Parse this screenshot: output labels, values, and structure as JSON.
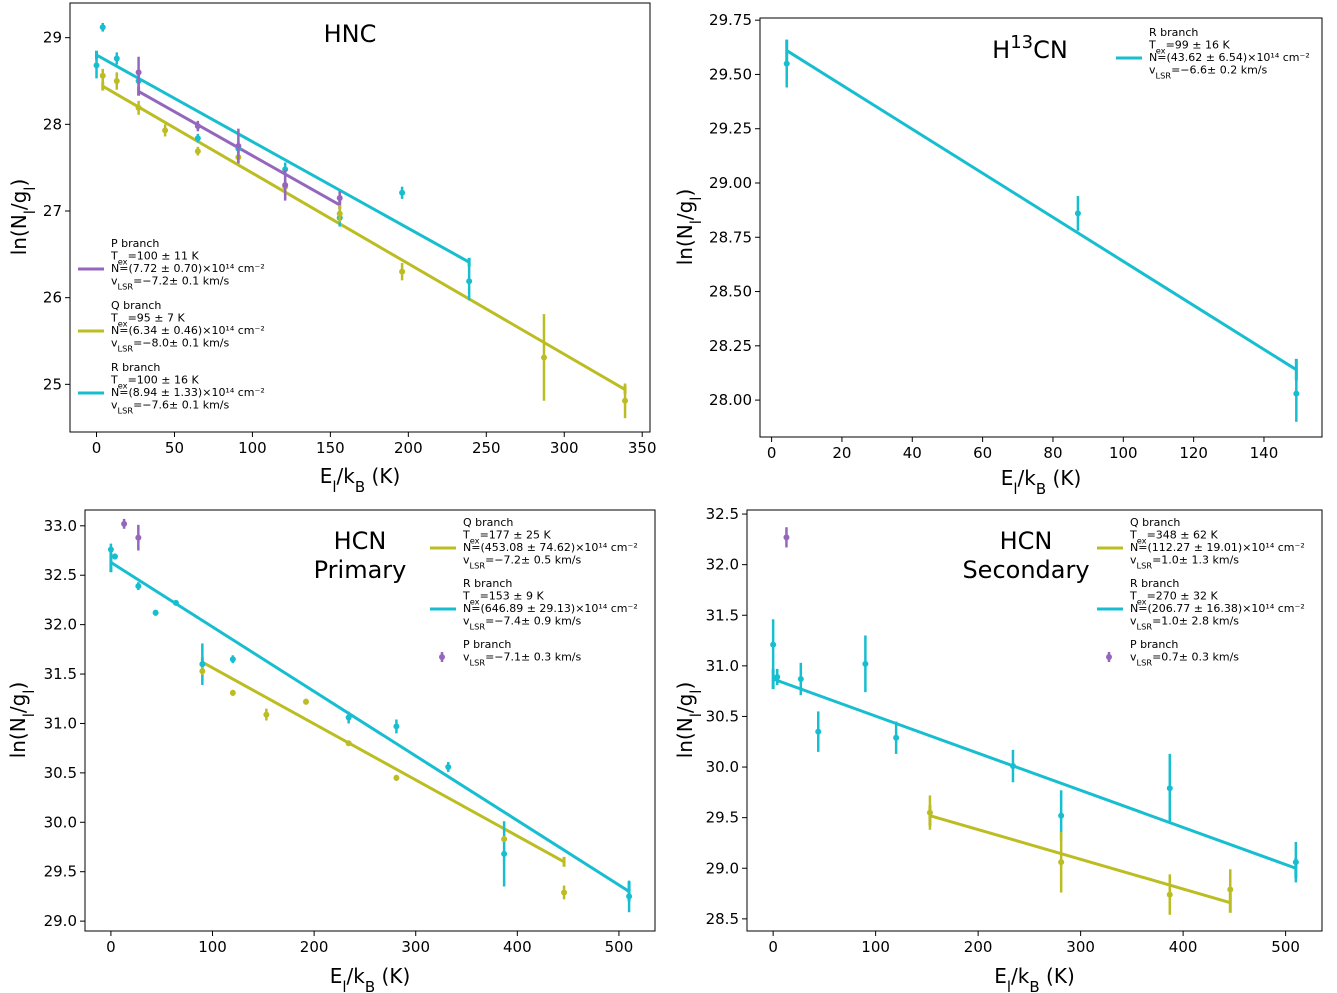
{
  "colors": {
    "P": "#9467bd",
    "Q": "#bcbd22",
    "R": "#17becf"
  },
  "chart_data": [
    {
      "type": "scatter",
      "title": "HNC",
      "xlabel": "E_l/k_B (K)",
      "ylabel": "ln(N_l/g_l)",
      "xlim": [
        -17,
        355
      ],
      "ylim": [
        24.45,
        29.4
      ],
      "xticks": [
        0,
        50,
        100,
        150,
        200,
        250,
        300,
        350
      ],
      "yticks": [
        25,
        26,
        27,
        28,
        29
      ],
      "legend_position": "center-left",
      "series": [
        {
          "key": "R",
          "points": [
            [
              0,
              28.68,
              0.15
            ],
            [
              4,
              29.12,
              0.05
            ],
            [
              13,
              28.76,
              0.07
            ],
            [
              27,
              28.5,
              0.08
            ],
            [
              65,
              27.84,
              0.05
            ],
            [
              91,
              27.72,
              0.08
            ],
            [
              121,
              27.48,
              0.08
            ],
            [
              156,
              26.92,
              0.1
            ],
            [
              196,
              27.21,
              0.07
            ],
            [
              239,
              26.19,
              0.22
            ]
          ],
          "fit": [
            [
              0,
              28.8
            ],
            [
              239,
              26.41
            ]
          ],
          "fit_bar": 0.05
        },
        {
          "key": "Q",
          "points": [
            [
              4,
              28.56,
              0.08
            ],
            [
              13,
              28.5,
              0.1
            ],
            [
              27,
              28.19,
              0.08
            ],
            [
              44,
              27.93,
              0.07
            ],
            [
              65,
              27.69,
              0.05
            ],
            [
              91,
              27.62,
              0.1
            ],
            [
              121,
              27.28,
              0.1
            ],
            [
              156,
              26.97,
              0.1
            ],
            [
              196,
              26.3,
              0.1
            ],
            [
              287,
              25.31,
              0.5
            ],
            [
              339,
              24.81,
              0.2
            ]
          ],
          "fit": [
            [
              4,
              28.44
            ],
            [
              339,
              24.94
            ]
          ],
          "fit_bar": 0.05
        },
        {
          "key": "P",
          "points": [
            [
              27,
              28.6,
              0.18
            ],
            [
              65,
              27.98,
              0.06
            ],
            [
              91,
              27.75,
              0.2
            ],
            [
              121,
              27.3,
              0.18
            ],
            [
              156,
              27.15,
              0.08
            ]
          ],
          "fit": [
            [
              27,
              28.38
            ],
            [
              156,
              27.07
            ]
          ],
          "fit_bar": 0.05
        }
      ],
      "legend": [
        {
          "key": "P",
          "lines": [
            "P branch",
            "Tex=100 ± 11 K",
            "N=(7.72 ± 0.70)×10¹⁴ cm⁻²",
            "vLSR=−7.2± 0.1 km/s"
          ]
        },
        {
          "key": "Q",
          "lines": [
            "Q branch",
            "Tex=95 ± 7 K",
            "N=(6.34 ± 0.46)×10¹⁴ cm⁻²",
            "vLSR=−8.0± 0.1 km/s"
          ]
        },
        {
          "key": "R",
          "lines": [
            "R branch",
            "Tex=100 ± 16 K",
            "N=(8.94 ± 1.33)×10¹⁴ cm⁻²",
            "vLSR=−7.6± 0.1 km/s"
          ]
        }
      ]
    },
    {
      "type": "scatter",
      "title": "H¹³CN",
      "xlabel": "E_l/k_B (K)",
      "ylabel": "ln(N_l/g_l)",
      "xlim": [
        -3.3,
        156.5
      ],
      "ylim": [
        27.83,
        29.76
      ],
      "xticks": [
        0,
        20,
        40,
        60,
        80,
        100,
        120,
        140
      ],
      "yticks": [
        28.0,
        28.25,
        28.5,
        28.75,
        29.0,
        29.25,
        29.5,
        29.75
      ],
      "yticklabels": [
        "28.00",
        "28.25",
        "28.50",
        "28.75",
        "29.00",
        "29.25",
        "29.50",
        "29.75"
      ],
      "legend_position": "top-right",
      "series": [
        {
          "key": "R",
          "points": [
            [
              4.3,
              29.55,
              0.11
            ],
            [
              87.1,
              28.86,
              0.08
            ],
            [
              149.2,
              28.03,
              0.13
            ]
          ],
          "fit": [
            [
              4.3,
              29.61
            ],
            [
              149.2,
              28.14
            ]
          ],
          "fit_bar": 0.05
        }
      ],
      "legend": [
        {
          "key": "R",
          "lines": [
            "R branch",
            "Tex=99 ± 16 K",
            "N=(43.62 ± 6.54)×10¹⁴ cm⁻²",
            "vLSR=−6.6± 0.2 km/s"
          ]
        }
      ]
    },
    {
      "type": "scatter",
      "title": "HCN Primary",
      "title_lines": [
        "HCN",
        "Primary"
      ],
      "xlabel": "E_l/k_B (K)",
      "ylabel": "ln(N_l/g_l)",
      "xlim": [
        -25.5,
        535.5
      ],
      "ylim": [
        28.9,
        33.16
      ],
      "xticks": [
        0,
        100,
        200,
        300,
        400,
        500
      ],
      "yticks": [
        29.0,
        29.5,
        30.0,
        30.5,
        31.0,
        31.5,
        32.0,
        32.5,
        33.0
      ],
      "yticklabels": [
        "29.0",
        "29.5",
        "30.0",
        "30.5",
        "31.0",
        "31.5",
        "32.0",
        "32.5",
        "33.0"
      ],
      "legend_position": "top-right",
      "series": [
        {
          "key": "R",
          "points": [
            [
              0,
              32.76,
              0.06
            ],
            [
              4,
              32.69,
              0.03
            ],
            [
              27,
              32.39,
              0.04
            ],
            [
              44,
              32.12,
              0.03
            ],
            [
              64,
              32.22,
              0.02
            ],
            [
              90,
              31.6,
              0.21
            ],
            [
              120,
              31.65,
              0.04
            ],
            [
              234,
              31.06,
              0.06
            ],
            [
              281,
              30.97,
              0.07
            ],
            [
              332,
              30.56,
              0.05
            ],
            [
              387,
              29.68,
              0.33
            ],
            [
              510,
              29.25,
              0.16
            ]
          ],
          "fit": [
            [
              0,
              32.63
            ],
            [
              510,
              29.3
            ]
          ],
          "fit_bar": 0.1
        },
        {
          "key": "Q",
          "points": [
            [
              90,
              31.53,
              0.04
            ],
            [
              120,
              31.31,
              0.03
            ],
            [
              153,
              31.09,
              0.06
            ],
            [
              192,
              31.22,
              0.03
            ],
            [
              234,
              30.8,
              0.02
            ],
            [
              281,
              30.45,
              0.03
            ],
            [
              387,
              29.83,
              0.03
            ],
            [
              446,
              29.29,
              0.07
            ]
          ],
          "fit": [
            [
              90,
              31.62
            ],
            [
              446,
              29.6
            ]
          ],
          "fit_bar": 0.05
        },
        {
          "key": "P",
          "points": [
            [
              13,
              33.02,
              0.05
            ],
            [
              27,
              32.88,
              0.13
            ]
          ]
        }
      ],
      "legend": [
        {
          "key": "Q",
          "lines": [
            "Q branch",
            "Tex=177 ± 25 K",
            "N=(453.08 ± 74.62)×10¹⁴ cm⁻²",
            "vLSR=−7.2± 0.5 km/s"
          ]
        },
        {
          "key": "R",
          "lines": [
            "R branch",
            "Tex=153 ± 9 K",
            "N=(646.89 ± 29.13)×10¹⁴ cm⁻²",
            "vLSR=−7.4± 0.9 km/s"
          ]
        },
        {
          "key": "P",
          "marker": true,
          "lines": [
            "P branch",
            "vLSR=−7.1± 0.3 km/s"
          ]
        }
      ]
    },
    {
      "type": "scatter",
      "title": "HCN Secondary",
      "title_lines": [
        "HCN",
        "Secondary"
      ],
      "xlabel": "E_l/k_B (K)",
      "ylabel": "ln(N_l/g_l)",
      "xlim": [
        -25.5,
        535.5
      ],
      "ylim": [
        28.38,
        32.54
      ],
      "xticks": [
        0,
        100,
        200,
        300,
        400,
        500
      ],
      "yticks": [
        28.5,
        29.0,
        29.5,
        30.0,
        30.5,
        31.0,
        31.5,
        32.0,
        32.5
      ],
      "yticklabels": [
        "28.5",
        "29.0",
        "29.5",
        "30.0",
        "30.5",
        "31.0",
        "31.5",
        "32.0",
        "32.5"
      ],
      "legend_position": "top-right",
      "series": [
        {
          "key": "R",
          "points": [
            [
              0,
              31.21,
              0.25
            ],
            [
              4,
              30.89,
              0.08
            ],
            [
              27,
              30.87,
              0.16
            ],
            [
              44,
              30.35,
              0.2
            ],
            [
              90,
              31.02,
              0.28
            ],
            [
              120,
              30.29,
              0.16
            ],
            [
              234,
              30.01,
              0.16
            ],
            [
              281,
              29.52,
              0.25
            ],
            [
              387,
              29.79,
              0.34
            ],
            [
              510,
              29.06,
              0.2
            ]
          ],
          "fit": [
            [
              0,
              30.87
            ],
            [
              510,
              29.0
            ]
          ],
          "fit_bar": 0.1
        },
        {
          "key": "Q",
          "points": [
            [
              153,
              29.55,
              0.17
            ],
            [
              281,
              29.06,
              0.3
            ],
            [
              387,
              28.74,
              0.2
            ],
            [
              446,
              28.79,
              0.2
            ]
          ],
          "fit": [
            [
              153,
              29.52
            ],
            [
              446,
              28.66
            ]
          ],
          "fit_bar": 0.1
        },
        {
          "key": "P",
          "points": [
            [
              13,
              32.27,
              0.1
            ]
          ]
        }
      ],
      "legend": [
        {
          "key": "Q",
          "lines": [
            "Q branch",
            "Tex=348 ± 62 K",
            "N=(112.27 ± 19.01)×10¹⁴ cm⁻²",
            "vLSR=1.0± 1.3 km/s"
          ]
        },
        {
          "key": "R",
          "lines": [
            "R branch",
            "Tex=270 ± 32 K",
            "N=(206.77 ± 16.38)×10¹⁴ cm⁻²",
            "vLSR=1.0± 2.8 km/s"
          ]
        },
        {
          "key": "P",
          "marker": true,
          "lines": [
            "P branch",
            "vLSR=0.7± 0.3 km/s"
          ]
        }
      ]
    }
  ]
}
